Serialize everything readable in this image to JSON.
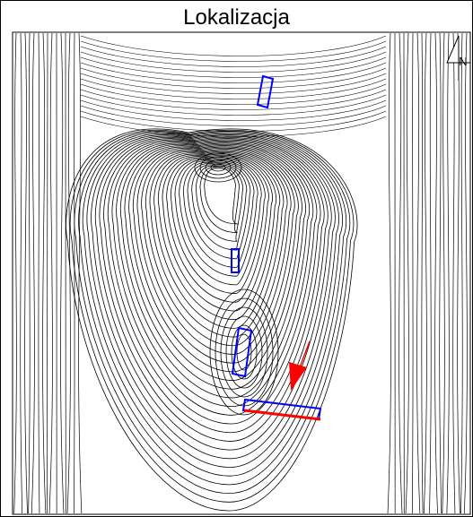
{
  "title": "Lokalizacja",
  "north_arrow": {
    "label": "N",
    "icon": "north-arrow-icon"
  },
  "colors": {
    "contour": "#000000",
    "marker_outline": "#0000ff",
    "profile_line": "#ff0000",
    "direction_arrow": "#ff0000",
    "background": "#ffffff"
  },
  "legend": [],
  "markers": [
    {
      "name": "marker-rectangle-1",
      "color": "#0000ff"
    },
    {
      "name": "marker-rectangle-2",
      "color": "#0000ff"
    },
    {
      "name": "marker-rectangle-3",
      "color": "#0000ff"
    },
    {
      "name": "marker-rectangle-4",
      "color": "#0000ff"
    }
  ]
}
